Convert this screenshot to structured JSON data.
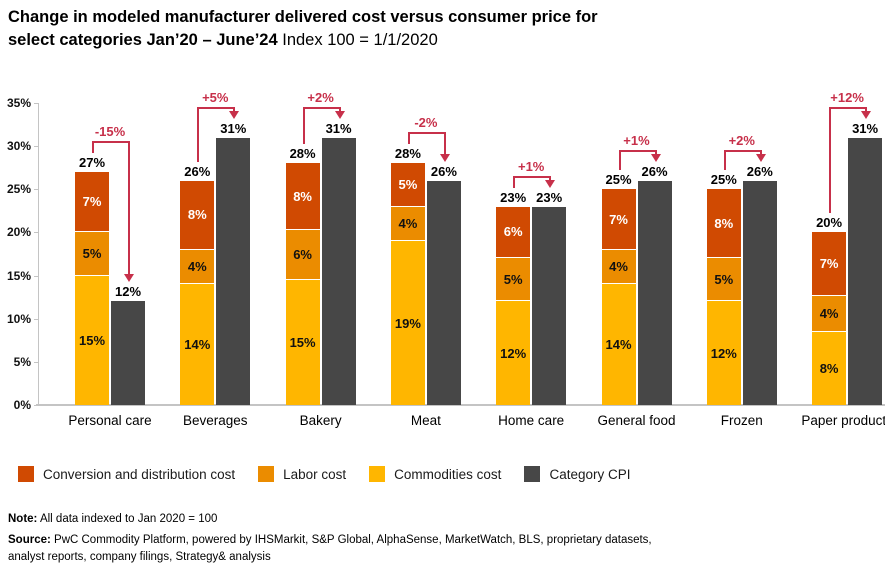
{
  "title": {
    "line1": "Change in modeled manufacturer delivered cost versus consumer price for",
    "line2_bold": "select categories Jan’20 – June’24",
    "line2_regular": " Index 100 = 1/1/2020"
  },
  "chart_data": {
    "type": "bar",
    "stacked": true,
    "title": "Change in modeled manufacturer delivered cost versus consumer price for select categories Jan’20 – June’24, Index 100 = 1/1/2020",
    "categories": [
      "Personal care",
      "Beverages",
      "Bakery",
      "Meat",
      "Home care",
      "General food",
      "Frozen",
      "Paper products"
    ],
    "series_order": [
      "commodities",
      "labor",
      "conversion"
    ],
    "groups": [
      {
        "category": "Personal care",
        "commodities": 15,
        "labor": 5,
        "conversion": 7,
        "total": 27,
        "cpi": 12,
        "delta": "-15%"
      },
      {
        "category": "Beverages",
        "commodities": 14,
        "labor": 4,
        "conversion": 8,
        "total": 26,
        "cpi": 31,
        "delta": "+5%"
      },
      {
        "category": "Bakery",
        "commodities": 15,
        "labor": 6,
        "conversion": 8,
        "total": 28,
        "cpi": 31,
        "delta": "+2%"
      },
      {
        "category": "Meat",
        "commodities": 19,
        "labor": 4,
        "conversion": 5,
        "total": 28,
        "cpi": 26,
        "delta": "-2%"
      },
      {
        "category": "Home care",
        "commodities": 12,
        "labor": 5,
        "conversion": 6,
        "total": 23,
        "cpi": 23,
        "delta": "+1%"
      },
      {
        "category": "General food",
        "commodities": 14,
        "labor": 4,
        "conversion": 7,
        "total": 25,
        "cpi": 26,
        "delta": "+1%"
      },
      {
        "category": "Frozen",
        "commodities": 12,
        "labor": 5,
        "conversion": 8,
        "total": 25,
        "cpi": 26,
        "delta": "+2%"
      },
      {
        "category": "Paper products",
        "commodities": 8,
        "labor": 4,
        "conversion": 7,
        "total": 20,
        "cpi": 31,
        "delta": "+12%"
      }
    ],
    "y_axis": {
      "min": 0,
      "max": 35,
      "step": 5,
      "tick_suffix": "%",
      "grid": false
    },
    "legend_position": "bottom",
    "legend": [
      {
        "key": "conversion",
        "label": "Conversion and distribution cost",
        "color": "#D04A02"
      },
      {
        "key": "labor",
        "label": "Labor cost",
        "color": "#EB8C00"
      },
      {
        "key": "commodities",
        "label": "Commodities cost",
        "color": "#FFB600"
      },
      {
        "key": "cpi",
        "label": "Category CPI",
        "color": "#474747"
      }
    ],
    "colors": {
      "commodities": "#FFB600",
      "labor": "#EB8C00",
      "conversion": "#D04A02",
      "cpi": "#474747",
      "annotation": "#C7304A",
      "axis": "#c4c4c4"
    }
  },
  "footer": {
    "note_label": "Note:",
    "note_text": " All data indexed to Jan 2020 = 100",
    "source_label": "Source:",
    "source_text": " PwC Commodity Platform, powered by IHSMarkit, S&P Global, AlphaSense, MarketWatch, BLS, proprietary datasets, analyst reports, company filings, Strategy& analysis"
  }
}
